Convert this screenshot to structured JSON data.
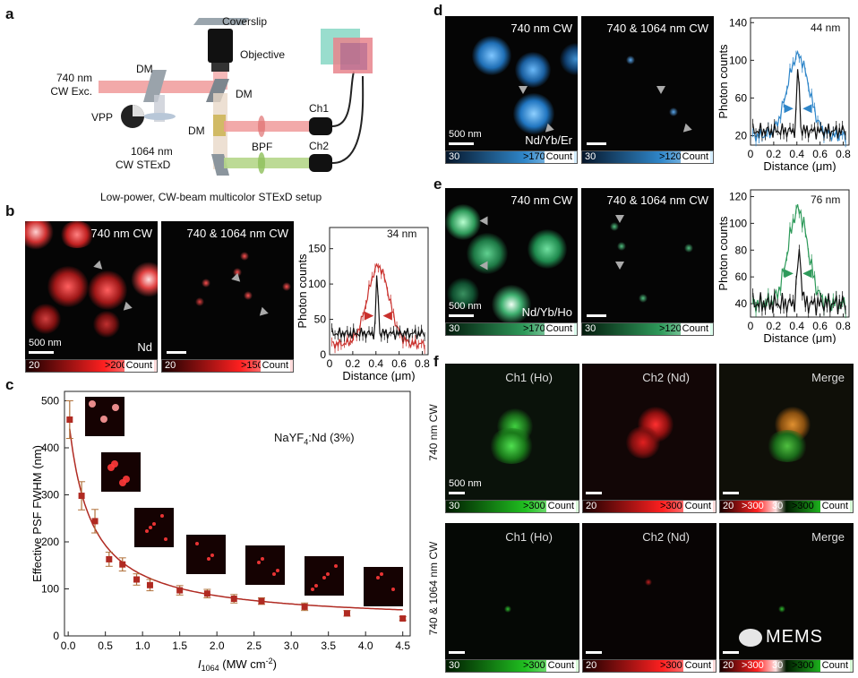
{
  "panel_labels": {
    "a": "a",
    "b": "b",
    "c": "c",
    "d": "d",
    "e": "e",
    "f": "f"
  },
  "setup": {
    "coverslip": "Coverslip",
    "objective": "Objective",
    "exc_line1": "740 nm",
    "exc_line2": "CW Exc.",
    "dm1": "DM",
    "dm2": "DM",
    "dm3": "DM",
    "vpp": "VPP",
    "sted_line1": "1064 nm",
    "sted_line2": "CW STExD",
    "bpf": "BPF",
    "ch1": "Ch1",
    "ch2": "Ch2",
    "caption": "Low-power, CW-beam multicolor STExD setup"
  },
  "panel_b": {
    "img1_label": "740 nm CW",
    "img2_label": "740 & 1064 nm CW",
    "element": "Nd",
    "scale": "500 nm",
    "cbar1": {
      "min": "20",
      "max": ">200",
      "unit": "Count"
    },
    "cbar2": {
      "min": "20",
      "max": ">150",
      "unit": "Count"
    },
    "profile_fwhm": "34 nm"
  },
  "panel_d": {
    "img1_label": "740 nm CW",
    "img2_label": "740 & 1064 nm CW",
    "element": "Nd/Yb/Er",
    "scale": "500 nm",
    "cbar1": {
      "min": "30",
      "max": ">170",
      "unit": "Count"
    },
    "cbar2": {
      "min": "30",
      "max": ">120",
      "unit": "Count"
    },
    "profile_fwhm": "44 nm"
  },
  "panel_e": {
    "img1_label": "740 nm CW",
    "img2_label": "740 & 1064 nm CW",
    "element": "Nd/Yb/Ho",
    "scale": "500 nm",
    "cbar1": {
      "min": "30",
      "max": ">170",
      "unit": "Count"
    },
    "cbar2": {
      "min": "30",
      "max": ">120",
      "unit": "Count"
    },
    "profile_fwhm": "76 nm"
  },
  "panel_c": {
    "annotation_main": "NaYF",
    "annotation_sub": "4",
    "annotation_rest": ":Nd (3%)"
  },
  "panel_f": {
    "row1_label": "740 nm CW",
    "row2_label": "740 & 1064 nm CW",
    "col1": "Ch1 (Ho)",
    "col2": "Ch2 (Nd)",
    "col3": "Merge",
    "scale": "500 nm",
    "cbar_green": {
      "min": "30",
      "max": ">300",
      "unit": "Count"
    },
    "cbar_red": {
      "min": "20",
      "max": ">300",
      "unit": "Count"
    },
    "cbar_merge": {
      "min1": "20",
      "max1": ">300",
      "min2": "30",
      "max2": ">300",
      "unit": "Count"
    }
  },
  "watermark": "MEMS",
  "colors": {
    "red": "#c0302a",
    "blue": "#2f86c9",
    "green": "#2e9a5a",
    "dark_red": "#a31f1a"
  },
  "chart_data": [
    {
      "type": "scatter",
      "title": "",
      "xlabel": "I1064 (MW cm-2)",
      "ylabel": "Effective PSF FWHM (nm)",
      "xlim": [
        -0.05,
        4.6
      ],
      "ylim": [
        0,
        520
      ],
      "xticks": [
        "0.0",
        "0.5",
        "1.0",
        "1.5",
        "2.0",
        "2.5",
        "3.0",
        "3.5",
        "4.0",
        "4.5"
      ],
      "yticks": [
        "0",
        "100",
        "200",
        "300",
        "400",
        "500"
      ],
      "x": [
        0.02,
        0.18,
        0.36,
        0.55,
        0.73,
        0.92,
        1.1,
        1.5,
        1.87,
        2.23,
        2.6,
        3.18,
        3.75,
        4.5
      ],
      "y": [
        460,
        298,
        244,
        163,
        152,
        120,
        108,
        97,
        90,
        79,
        74,
        62,
        48,
        37
      ],
      "err": [
        40,
        30,
        25,
        15,
        14,
        12,
        12,
        10,
        9,
        9,
        7,
        8,
        6,
        4
      ],
      "fit": "decay",
      "color": "#b02a22"
    },
    {
      "type": "line",
      "panel": "b",
      "xlabel": "Distance (μm)",
      "ylabel": "Photon counts",
      "xlim": [
        0,
        0.85
      ],
      "ylim": [
        0,
        180
      ],
      "xticks": [
        "0",
        "0.2",
        "0.4",
        "0.6",
        "0.8"
      ],
      "yticks": [
        "0",
        "50",
        "100",
        "150"
      ],
      "series": [
        {
          "color": "#c9302c",
          "peak": 125,
          "base": 15,
          "width": 0.22,
          "center": 0.42
        },
        {
          "color": "#111111",
          "peak": 120,
          "base": 30,
          "width": 0.02,
          "center": 0.41
        }
      ]
    },
    {
      "type": "line",
      "panel": "d",
      "xlabel": "Distance (μm)",
      "ylabel": "Photon counts",
      "xlim": [
        0,
        0.85
      ],
      "ylim": [
        10,
        145
      ],
      "xticks": [
        "0",
        "0.2",
        "0.4",
        "0.6",
        "0.8"
      ],
      "yticks": [
        "20",
        "60",
        "100",
        "140"
      ],
      "series": [
        {
          "color": "#2f86c9",
          "peak": 105,
          "base": 20,
          "width": 0.22,
          "center": 0.41
        },
        {
          "color": "#111111",
          "peak": 95,
          "base": 25,
          "width": 0.025,
          "center": 0.41
        }
      ]
    },
    {
      "type": "line",
      "panel": "e",
      "xlabel": "Distance (μm)",
      "ylabel": "Photon counts",
      "xlim": [
        0,
        0.85
      ],
      "ylim": [
        30,
        125
      ],
      "xticks": [
        "0",
        "0.2",
        "0.4",
        "0.6",
        "0.8"
      ],
      "yticks": [
        "40",
        "60",
        "80",
        "100",
        "120"
      ],
      "series": [
        {
          "color": "#2e9a5a",
          "peak": 110,
          "base": 40,
          "width": 0.2,
          "center": 0.41
        },
        {
          "color": "#111111",
          "peak": 78,
          "base": 40,
          "width": 0.04,
          "center": 0.42
        }
      ]
    }
  ]
}
